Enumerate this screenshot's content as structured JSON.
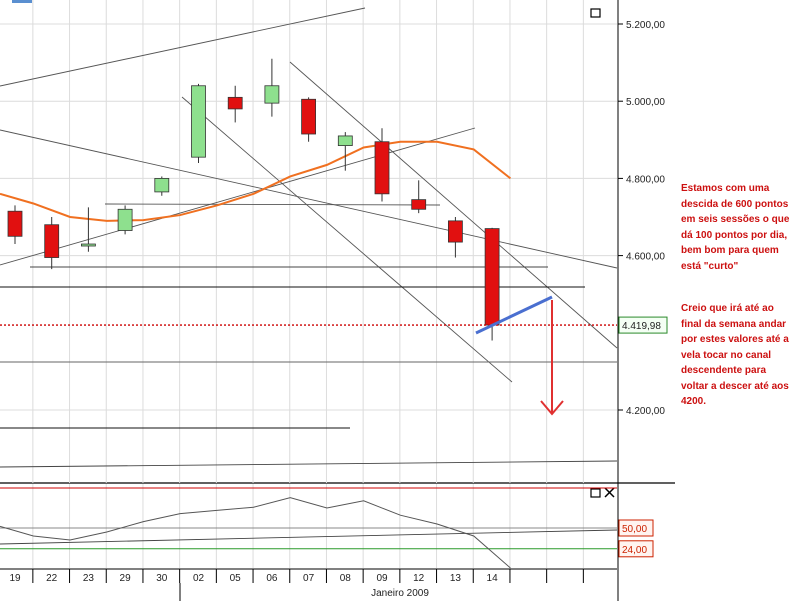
{
  "chart_data": {
    "type": "candlestick",
    "dates": [
      "19",
      "22",
      "23",
      "29",
      "30",
      "02",
      "05",
      "06",
      "07",
      "08",
      "09",
      "12",
      "13",
      "14"
    ],
    "month_label": "Janeiro 2009",
    "price_ticks": [
      "5.200,00",
      "5.000,00",
      "4.800,00",
      "4.600,00",
      "4.200,00"
    ],
    "price_tick_values": [
      5200,
      5000,
      4800,
      4600,
      4200
    ],
    "ylim": [
      4040,
      5250
    ],
    "last_price_label": "4.419,98",
    "last_price": 4419.98,
    "candles": [
      {
        "o": 4715,
        "h": 4730,
        "l": 4630,
        "c": 4650
      },
      {
        "o": 4680,
        "h": 4700,
        "l": 4565,
        "c": 4595
      },
      {
        "o": 4625,
        "h": 4725,
        "l": 4610,
        "c": 4630
      },
      {
        "o": 4665,
        "h": 4730,
        "l": 4655,
        "c": 4720
      },
      {
        "o": 4765,
        "h": 4805,
        "l": 4755,
        "c": 4800
      },
      {
        "o": 4855,
        "h": 5045,
        "l": 4840,
        "c": 5040
      },
      {
        "o": 5010,
        "h": 5040,
        "l": 4945,
        "c": 4980
      },
      {
        "o": 4995,
        "h": 5110,
        "l": 4960,
        "c": 5040
      },
      {
        "o": 5005,
        "h": 5010,
        "l": 4895,
        "c": 4915
      },
      {
        "o": 4885,
        "h": 4920,
        "l": 4820,
        "c": 4910
      },
      {
        "o": 4895,
        "h": 4930,
        "l": 4740,
        "c": 4760
      },
      {
        "o": 4745,
        "h": 4795,
        "l": 4710,
        "c": 4720
      },
      {
        "o": 4690,
        "h": 4700,
        "l": 4595,
        "c": 4635
      },
      {
        "o": 4670,
        "h": 4672,
        "l": 4380,
        "c": 4420
      }
    ],
    "moving_average": [
      4760,
      4735,
      4700,
      4690,
      4692,
      4705,
      4730,
      4760,
      4805,
      4835,
      4880,
      4895,
      4895,
      4875,
      4800
    ],
    "oscillator": {
      "ylim": [
        0,
        100
      ],
      "levels": [
        "50,00",
        "24,00"
      ],
      "level_values": [
        50,
        24
      ],
      "values": [
        52,
        40,
        35,
        45,
        58,
        68,
        72,
        76,
        88,
        75,
        84,
        66,
        55,
        40,
        0
      ]
    },
    "annotation_paragraphs": [
      [
        "Estamos com uma",
        "descida de 600 pontos",
        "em seis sessões o que",
        "dá 100 pontos por dia,",
        "bem bom para quem",
        "está \"curto\""
      ],
      [
        "Creio que irá até ao",
        "final da semana andar",
        "por estes valores até a",
        "vela tocar no canal",
        "descendente para",
        "voltar a descer até aos",
        "4200."
      ]
    ],
    "colors": {
      "bull": "#8ee08e",
      "bear": "#e11010",
      "moving_average": "#f07020",
      "projection": "#4a6fd0",
      "arrow": "#e03030",
      "last_price_line": "#cc0000",
      "level_box": "#cc2200",
      "annotation": "#cc1010",
      "grid": "#dcdcdc"
    }
  }
}
